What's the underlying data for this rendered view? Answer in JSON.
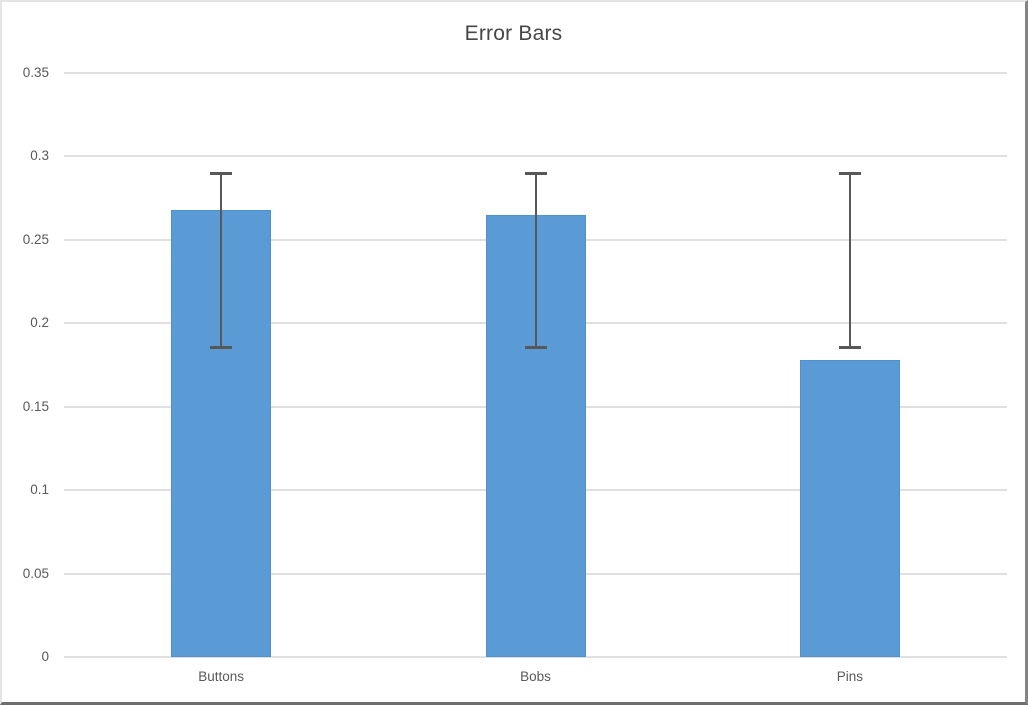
{
  "chart_data": {
    "type": "bar",
    "title": "Error Bars",
    "categories": [
      "Buttons",
      "Bobs",
      "Pins"
    ],
    "values": [
      0.268,
      0.265,
      0.178
    ],
    "error_bars": {
      "lower": [
        0.185,
        0.185,
        0.185
      ],
      "upper": [
        0.29,
        0.29,
        0.29
      ]
    },
    "xlabel": "",
    "ylabel": "",
    "ylim": [
      0,
      0.35
    ],
    "y_ticks": [
      0,
      0.05,
      0.1,
      0.15,
      0.2,
      0.25,
      0.3,
      0.35
    ],
    "y_tick_labels": [
      "0",
      "0.05",
      "0.1",
      "0.15",
      "0.2",
      "0.25",
      "0.3",
      "0.35"
    ],
    "grid": true,
    "legend_position": "none",
    "bar_color": "#5b9bd5",
    "error_bar_color": "#585858",
    "gridline_color": "#e0e0e0",
    "axis_text_color": "#595959",
    "title_color": "#474747",
    "background_color": "#ffffff"
  }
}
